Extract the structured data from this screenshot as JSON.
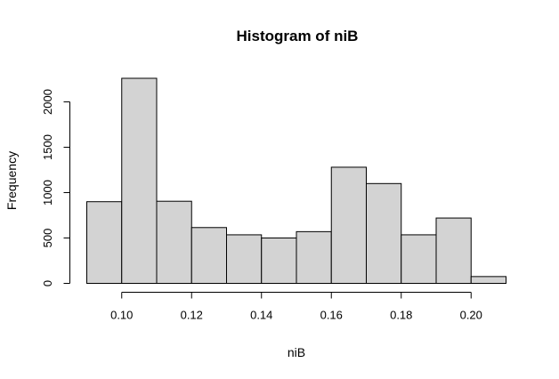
{
  "chart_data": {
    "type": "bar",
    "title": "Histogram of niB",
    "xlabel": "niB",
    "ylabel": "Frequency",
    "bins": [
      {
        "from": 0.09,
        "to": 0.1,
        "count": 900
      },
      {
        "from": 0.1,
        "to": 0.11,
        "count": 2260
      },
      {
        "from": 0.11,
        "to": 0.12,
        "count": 905
      },
      {
        "from": 0.12,
        "to": 0.13,
        "count": 615
      },
      {
        "from": 0.13,
        "to": 0.14,
        "count": 535
      },
      {
        "from": 0.14,
        "to": 0.15,
        "count": 500
      },
      {
        "from": 0.15,
        "to": 0.16,
        "count": 570
      },
      {
        "from": 0.16,
        "to": 0.17,
        "count": 1280
      },
      {
        "from": 0.17,
        "to": 0.18,
        "count": 1100
      },
      {
        "from": 0.18,
        "to": 0.19,
        "count": 535
      },
      {
        "from": 0.19,
        "to": 0.2,
        "count": 720
      },
      {
        "from": 0.2,
        "to": 0.21,
        "count": 75
      }
    ],
    "xlim": [
      0.09,
      0.21
    ],
    "ylim": [
      0,
      2260
    ],
    "x_ticks": [
      0.1,
      0.12,
      0.14,
      0.16,
      0.18,
      0.2
    ],
    "x_tick_labels": [
      "0.10",
      "0.12",
      "0.14",
      "0.16",
      "0.18",
      "0.20"
    ],
    "y_ticks": [
      0,
      500,
      1000,
      1500,
      2000
    ],
    "y_tick_labels": [
      "0",
      "500",
      "1000",
      "1500",
      "2000"
    ],
    "colors": {
      "bar_fill": "#d3d3d3",
      "bar_stroke": "#000000"
    }
  }
}
